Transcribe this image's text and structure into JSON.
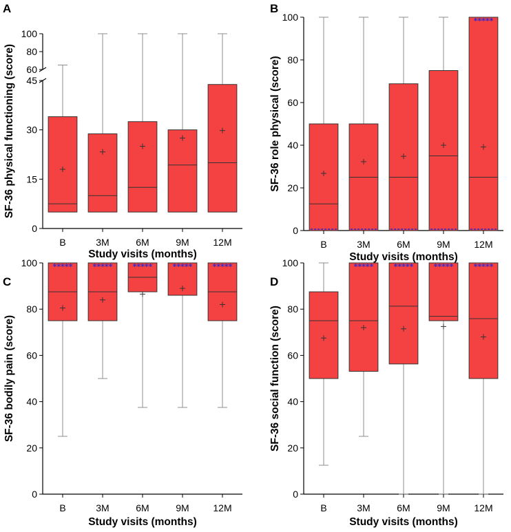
{
  "figure": {
    "box_color": "#f44141",
    "star_color": "#2b2bd6",
    "whisker_color": "#8c8c8c"
  },
  "chart_data": [
    {
      "panel": "A",
      "type": "box",
      "ylabel": "SF-36 physical functioning (score)",
      "xlabel": "Study visits (months)",
      "categories": [
        "B",
        "3M",
        "6M",
        "9M",
        "12M"
      ],
      "ylim": [
        0,
        100
      ],
      "axis_break": [
        45,
        60
      ],
      "yticks": [
        0,
        15,
        30,
        45,
        60,
        80,
        100
      ],
      "boxes": [
        {
          "whisker_low": null,
          "q1": 5,
          "median": 7.5,
          "q3": 34,
          "whisker_high": 65,
          "mean": 18,
          "star_marker": false,
          "floor_marker": false
        },
        {
          "whisker_low": null,
          "q1": 5,
          "median": 10,
          "q3": 28.8,
          "whisker_high": 100,
          "mean": 23.3,
          "star_marker": false,
          "floor_marker": false
        },
        {
          "whisker_low": null,
          "q1": 5,
          "median": 12.5,
          "q3": 32.5,
          "whisker_high": 100,
          "mean": 25,
          "star_marker": false,
          "floor_marker": false
        },
        {
          "whisker_low": null,
          "q1": 5,
          "median": 19.3,
          "q3": 30,
          "whisker_high": 100,
          "mean": 27.5,
          "star_marker": false,
          "floor_marker": false
        },
        {
          "whisker_low": null,
          "q1": 5,
          "median": 20,
          "q3": 43.8,
          "whisker_high": 100,
          "mean": 29.8,
          "star_marker": false,
          "floor_marker": false
        }
      ]
    },
    {
      "panel": "B",
      "type": "box",
      "ylabel": "SF-36 role physical (score)",
      "xlabel": "Study visits (months)",
      "categories": [
        "B",
        "3M",
        "6M",
        "9M",
        "12M"
      ],
      "ylim": [
        0,
        100
      ],
      "yticks": [
        0,
        20,
        40,
        60,
        80,
        100
      ],
      "boxes": [
        {
          "whisker_low": null,
          "q1": 0,
          "median": 12.5,
          "q3": 50,
          "whisker_high": 100,
          "mean": 26.8,
          "star_marker": false,
          "floor_marker": true
        },
        {
          "whisker_low": null,
          "q1": 0,
          "median": 25,
          "q3": 50,
          "whisker_high": 100,
          "mean": 32.3,
          "star_marker": false,
          "floor_marker": true
        },
        {
          "whisker_low": null,
          "q1": 0,
          "median": 25,
          "q3": 68.8,
          "whisker_high": 100,
          "mean": 34.8,
          "star_marker": false,
          "floor_marker": true
        },
        {
          "whisker_low": null,
          "q1": 0,
          "median": 35,
          "q3": 75,
          "whisker_high": 100,
          "mean": 40,
          "star_marker": false,
          "floor_marker": true
        },
        {
          "whisker_low": null,
          "q1": 0,
          "median": 25,
          "q3": 100,
          "whisker_high": 100,
          "mean": 39.2,
          "star_marker": true,
          "floor_marker": true
        }
      ]
    },
    {
      "panel": "C",
      "type": "box",
      "ylabel": "SF-36 bodily pain (score)",
      "xlabel": "Study visits (months)",
      "categories": [
        "B",
        "3M",
        "6M",
        "9M",
        "12M"
      ],
      "ylim": [
        0,
        100
      ],
      "yticks": [
        0,
        20,
        40,
        60,
        80,
        100
      ],
      "boxes": [
        {
          "whisker_low": 25,
          "q1": 75,
          "median": 87.5,
          "q3": 100,
          "whisker_high": 100,
          "mean": 80.5,
          "star_marker": true,
          "floor_marker": false
        },
        {
          "whisker_low": 50,
          "q1": 75,
          "median": 87.5,
          "q3": 100,
          "whisker_high": 100,
          "mean": 84,
          "star_marker": true,
          "floor_marker": false
        },
        {
          "whisker_low": 37.5,
          "q1": 87.5,
          "median": 93.8,
          "q3": 100,
          "whisker_high": 100,
          "mean": 86.5,
          "star_marker": true,
          "floor_marker": false
        },
        {
          "whisker_low": 37.5,
          "q1": 86,
          "median": 100,
          "q3": 100,
          "whisker_high": 100,
          "mean": 89,
          "star_marker": true,
          "floor_marker": false
        },
        {
          "whisker_low": 37.5,
          "q1": 75,
          "median": 87.5,
          "q3": 100,
          "whisker_high": 100,
          "mean": 82,
          "star_marker": true,
          "floor_marker": false
        }
      ]
    },
    {
      "panel": "D",
      "type": "box",
      "ylabel": "SF-36 social function (score)",
      "xlabel": "Study visits (months)",
      "categories": [
        "B",
        "3M",
        "6M",
        "9M",
        "12M"
      ],
      "ylim": [
        0,
        100
      ],
      "yticks": [
        0,
        20,
        40,
        60,
        80,
        100
      ],
      "boxes": [
        {
          "whisker_low": 12.5,
          "q1": 50,
          "median": 75,
          "q3": 87.5,
          "whisker_high": 100,
          "mean": 67.5,
          "star_marker": false,
          "floor_marker": false
        },
        {
          "whisker_low": 25,
          "q1": 53.1,
          "median": 75,
          "q3": 100,
          "whisker_high": 100,
          "mean": 72,
          "star_marker": true,
          "floor_marker": false
        },
        {
          "whisker_low": 0,
          "q1": 56.3,
          "median": 81.3,
          "q3": 100,
          "whisker_high": 100,
          "mean": 71.5,
          "star_marker": true,
          "floor_marker": false
        },
        {
          "whisker_low": 0,
          "q1": 75,
          "median": 76.9,
          "q3": 100,
          "whisker_high": 100,
          "mean": 72.5,
          "star_marker": true,
          "floor_marker": false
        },
        {
          "whisker_low": 0,
          "q1": 50,
          "median": 75.9,
          "q3": 100,
          "whisker_high": 100,
          "mean": 68,
          "star_marker": true,
          "floor_marker": false
        }
      ]
    }
  ],
  "star_text": "*****"
}
